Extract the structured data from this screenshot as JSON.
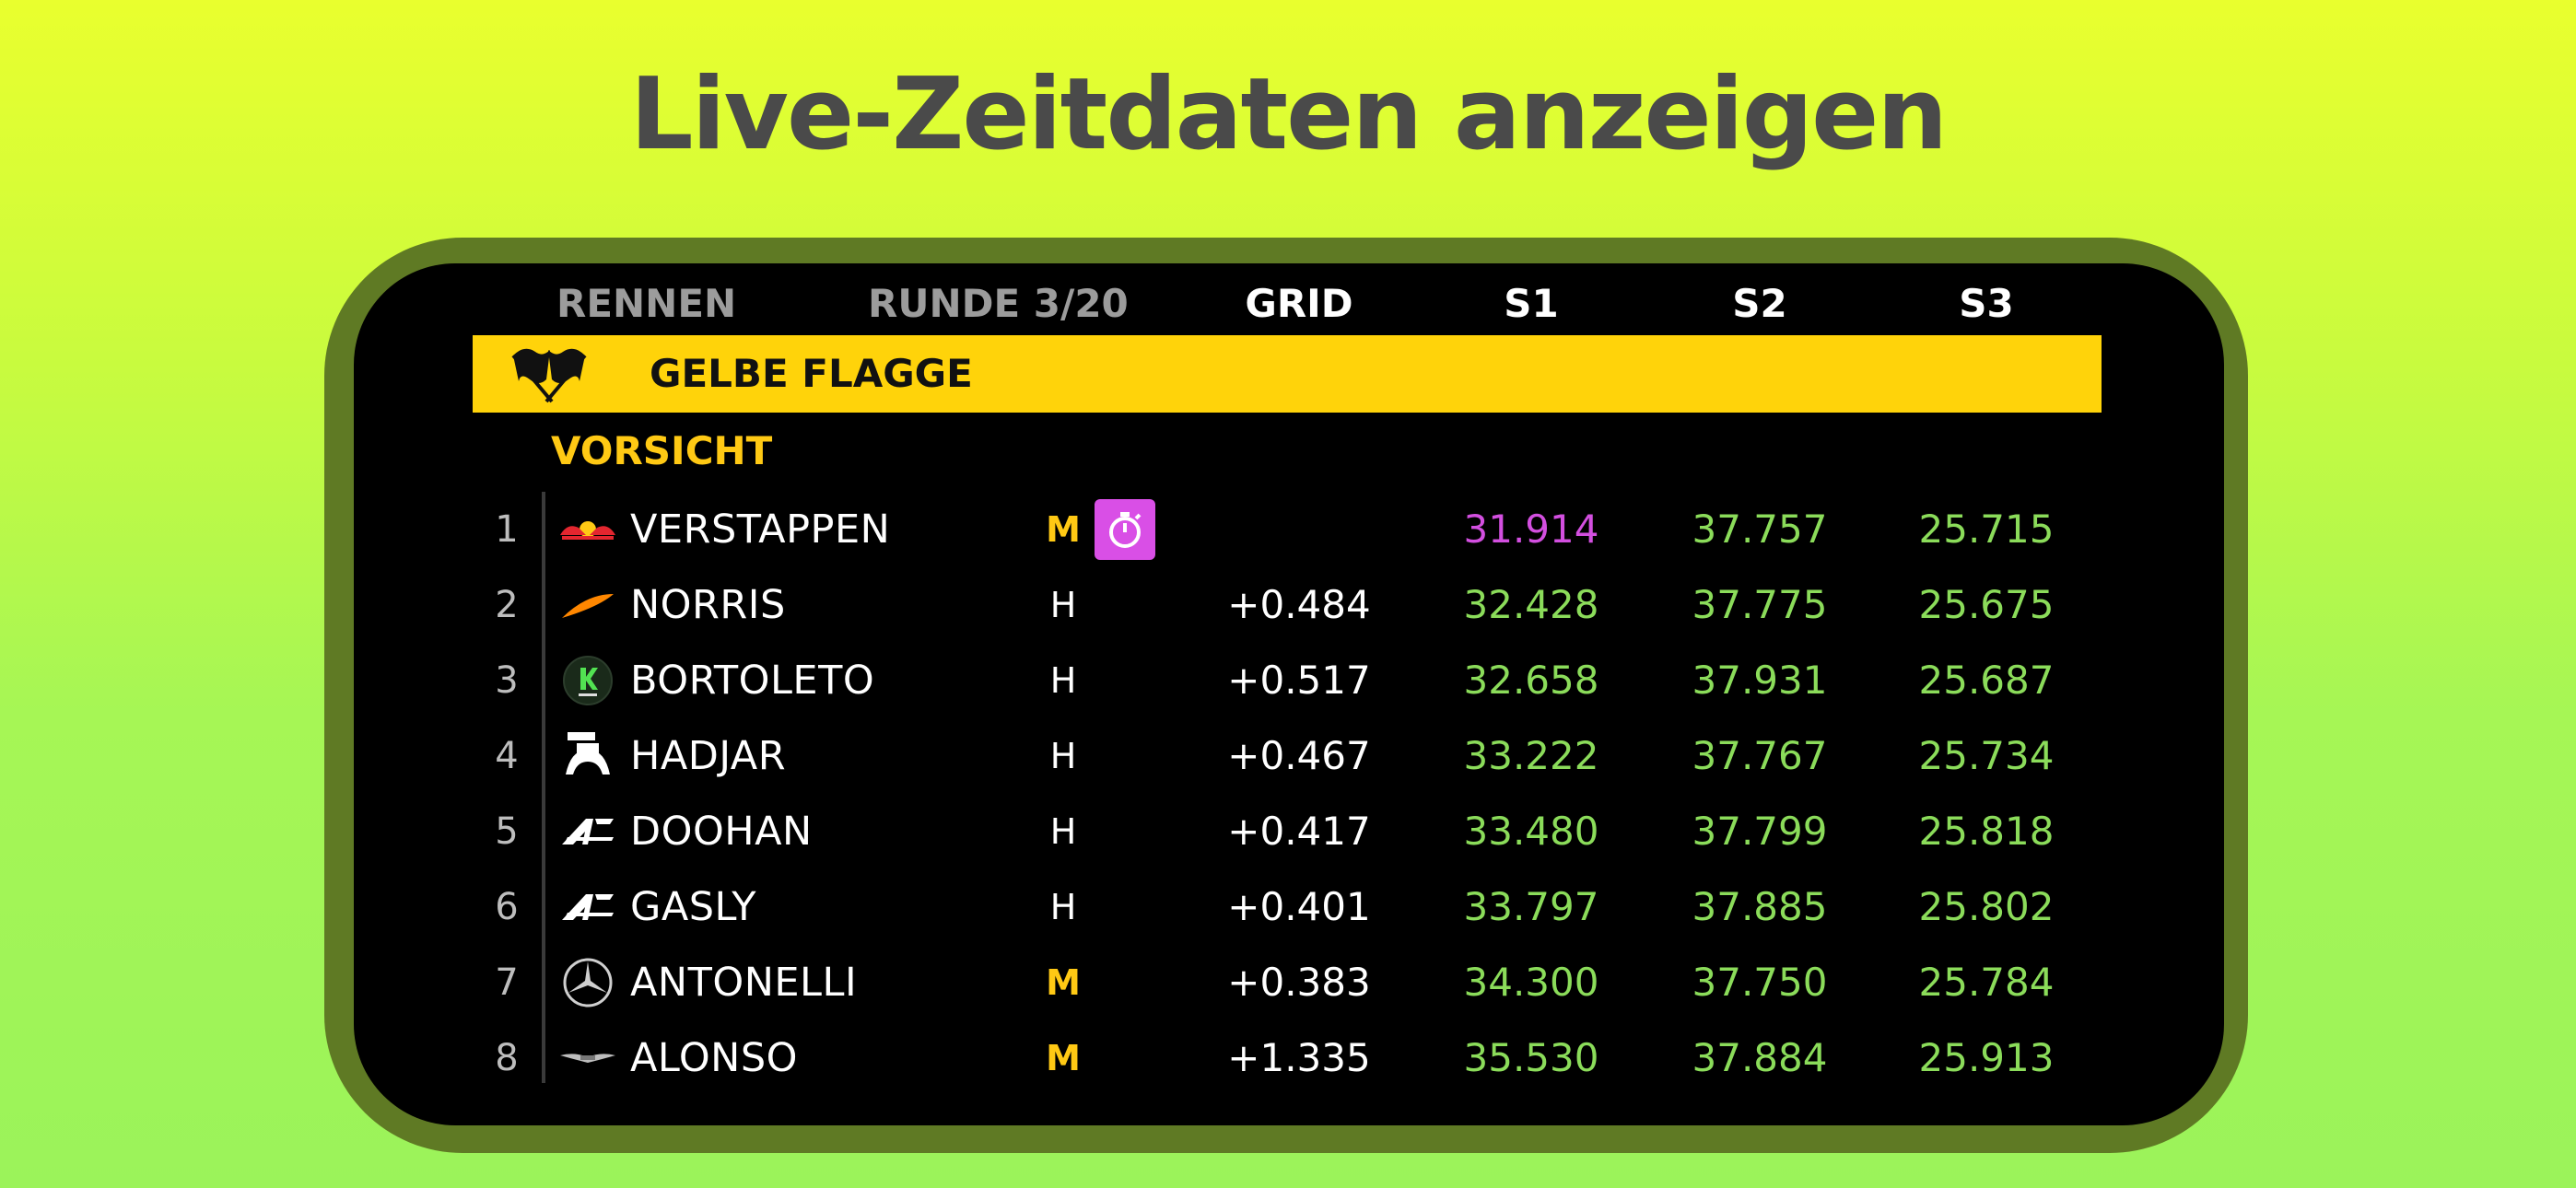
{
  "headline": "Live-Zeitdaten anzeigen",
  "header": {
    "session": "RENNEN",
    "lap": "RUNDE 3/20",
    "grid": "GRID",
    "s1": "S1",
    "s2": "S2",
    "s3": "S3"
  },
  "flag": {
    "label": "GELBE FLAGGE",
    "icon": "crossed-flags-icon"
  },
  "caution": "VORSICHT",
  "colors": {
    "flag_yellow": "#ffd30a",
    "caution": "#ffc914",
    "sector_green": "#8bdc5a",
    "fastest_purple": "#d34fe0",
    "pit_badge": "#d94fe6"
  },
  "drivers": [
    {
      "pos": "1",
      "name": "VERSTAPPEN",
      "team_icon": "red-bull-icon",
      "tyre": "M",
      "pit": true,
      "gap": "",
      "s1": "31.914",
      "s2": "37.757",
      "s3": "25.715"
    },
    {
      "pos": "2",
      "name": "NORRIS",
      "team_icon": "mclaren-icon",
      "tyre": "H",
      "pit": false,
      "gap": "+0.484",
      "s1": "32.428",
      "s2": "37.775",
      "s3": "25.675"
    },
    {
      "pos": "3",
      "name": "BORTOLETO",
      "team_icon": "sauber-icon",
      "tyre": "H",
      "pit": false,
      "gap": "+0.517",
      "s1": "32.658",
      "s2": "37.931",
      "s3": "25.687"
    },
    {
      "pos": "4",
      "name": "HADJAR",
      "team_icon": "racing-bulls-icon",
      "tyre": "H",
      "pit": false,
      "gap": "+0.467",
      "s1": "33.222",
      "s2": "37.767",
      "s3": "25.734"
    },
    {
      "pos": "5",
      "name": "DOOHAN",
      "team_icon": "alpine-icon",
      "tyre": "H",
      "pit": false,
      "gap": "+0.417",
      "s1": "33.480",
      "s2": "37.799",
      "s3": "25.818"
    },
    {
      "pos": "6",
      "name": "GASLY",
      "team_icon": "alpine-icon",
      "tyre": "H",
      "pit": false,
      "gap": "+0.401",
      "s1": "33.797",
      "s2": "37.885",
      "s3": "25.802"
    },
    {
      "pos": "7",
      "name": "ANTONELLI",
      "team_icon": "mercedes-icon",
      "tyre": "M",
      "pit": false,
      "gap": "+0.383",
      "s1": "34.300",
      "s2": "37.750",
      "s3": "25.784"
    },
    {
      "pos": "8",
      "name": "ALONSO",
      "team_icon": "aston-martin-icon",
      "tyre": "M",
      "pit": false,
      "gap": "+1.335",
      "s1": "35.530",
      "s2": "37.884",
      "s3": "25.913"
    }
  ]
}
